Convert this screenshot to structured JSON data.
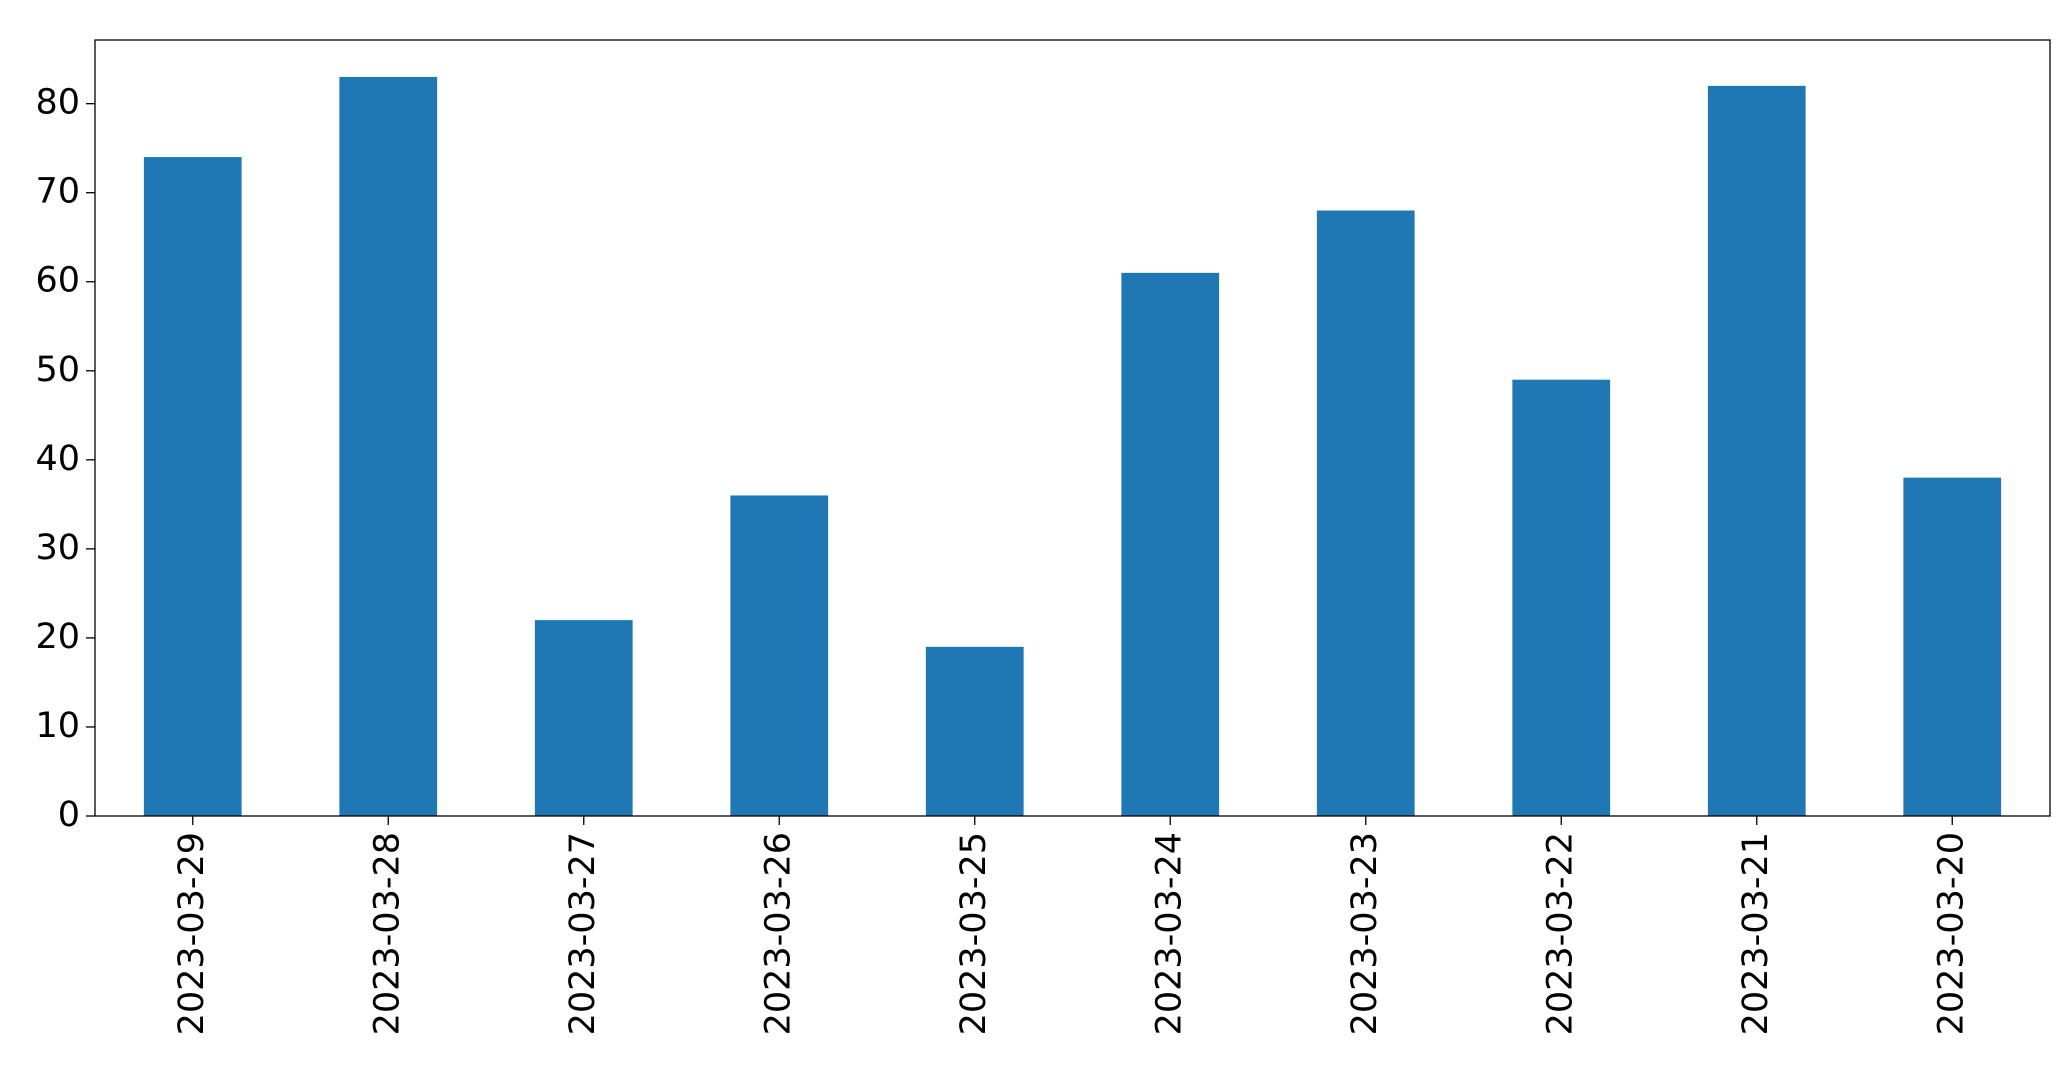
{
  "chart_data": {
    "type": "bar",
    "categories": [
      "2023-03-29",
      "2023-03-28",
      "2023-03-27",
      "2023-03-26",
      "2023-03-25",
      "2023-03-24",
      "2023-03-23",
      "2023-03-22",
      "2023-03-21",
      "2023-03-20"
    ],
    "values": [
      74,
      83,
      22,
      36,
      19,
      61,
      68,
      49,
      82,
      38
    ],
    "color": "#1f77b4",
    "ylim": [
      0,
      87.15
    ],
    "yticks": [
      0,
      10,
      20,
      30,
      40,
      50,
      60,
      70,
      80
    ],
    "grid": false
  }
}
